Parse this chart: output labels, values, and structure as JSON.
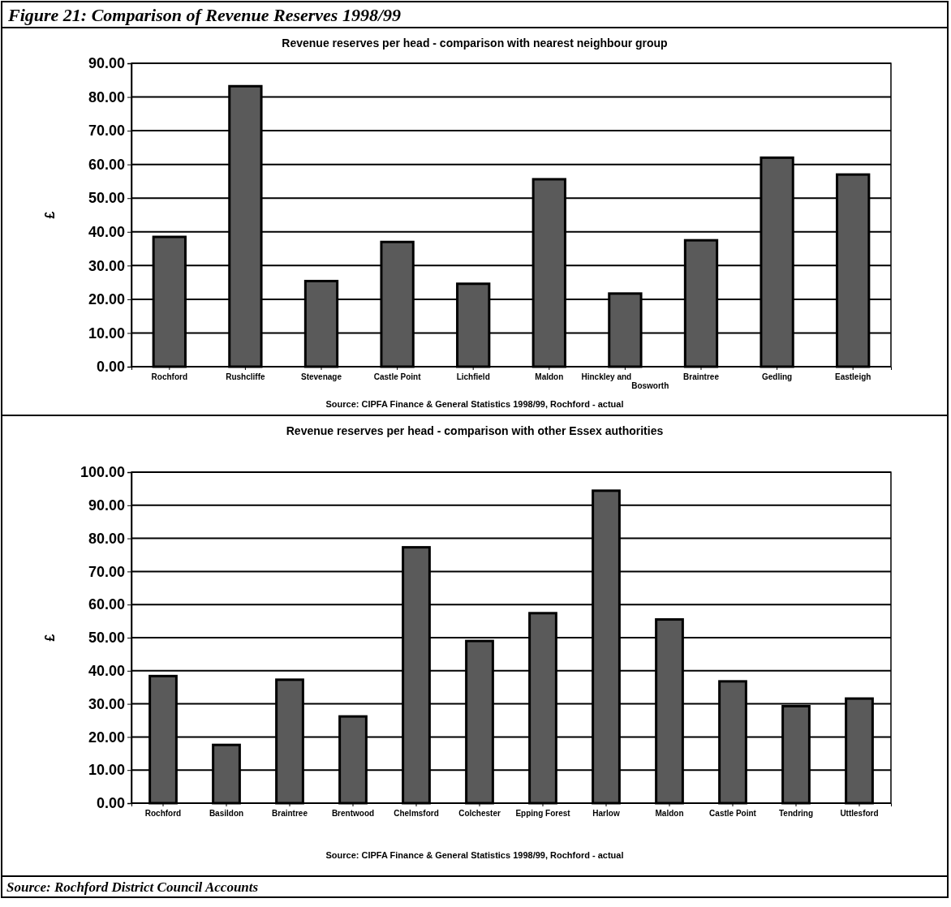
{
  "chart_data": [
    {
      "type": "bar",
      "title": "Figure 21: Comparison of Revenue Reserves 1998/99",
      "subtitle": "Revenue reserves per head - comparison with nearest neighbour group",
      "ylabel": "£",
      "categories": [
        "Rochford",
        "Rushcliffe",
        "Stevenage",
        "Castle Point",
        "Lichfield",
        "Maldon",
        "Hinckley and Bosworth",
        "Braintree",
        "Gedling",
        "Eastleigh"
      ],
      "values": [
        38.5,
        83.2,
        25.4,
        37,
        24.6,
        55.6,
        21.7,
        37.5,
        62,
        57
      ],
      "color": "#5a5a5a",
      "ylim": [
        0,
        90
      ],
      "yticks": [
        {
          "value": 0,
          "label": "0.00"
        },
        {
          "value": 10,
          "label": "10.00"
        },
        {
          "value": 20,
          "label": "20.00"
        },
        {
          "value": 30,
          "label": "30.00"
        },
        {
          "value": 40,
          "label": "40.00"
        },
        {
          "value": 50,
          "label": "50.00"
        },
        {
          "value": 60,
          "label": "60.00"
        },
        {
          "value": 70,
          "label": "70.00"
        },
        {
          "value": 80,
          "label": "80.00"
        },
        {
          "value": 90,
          "label": "90.00"
        }
      ],
      "grid": "y",
      "annotations": [
        "Source: CIPFA Finance & General Statistics 1998/99, Rochford - actual"
      ]
    },
    {
      "type": "bar",
      "title": "Revenue reserves per head - comparison with other Essex authorities",
      "ylabel": "£",
      "categories": [
        "Rochford",
        "Basildon",
        "Braintree",
        "Brentwood",
        "Chelmsford",
        "Colchester",
        "Epping Forest",
        "Harlow",
        "Maldon",
        "Castle Point",
        "Tendring",
        "Uttlesford"
      ],
      "values": [
        38.4,
        17.6,
        37.3,
        26.2,
        77.3,
        49,
        57.4,
        94.4,
        55.5,
        36.8,
        29.3,
        31.6
      ],
      "color": "#5a5a5a",
      "ylim": [
        0,
        100
      ],
      "yticks": [
        {
          "value": 0,
          "label": "0.00"
        },
        {
          "value": 10,
          "label": "10.00"
        },
        {
          "value": 20,
          "label": "20.00"
        },
        {
          "value": 30,
          "label": "30.00"
        },
        {
          "value": 40,
          "label": "40.00"
        },
        {
          "value": 50,
          "label": "50.00"
        },
        {
          "value": 60,
          "label": "60.00"
        },
        {
          "value": 70,
          "label": "70.00"
        },
        {
          "value": 80,
          "label": "80.00"
        },
        {
          "value": 90,
          "label": "90.00"
        },
        {
          "value": 100,
          "label": "100.00"
        }
      ],
      "grid": "y",
      "annotations": [
        "Source: CIPFA Finance & General Statistics 1998/99, Rochford - actual",
        "Source: Rochford District Council Accounts"
      ]
    }
  ]
}
